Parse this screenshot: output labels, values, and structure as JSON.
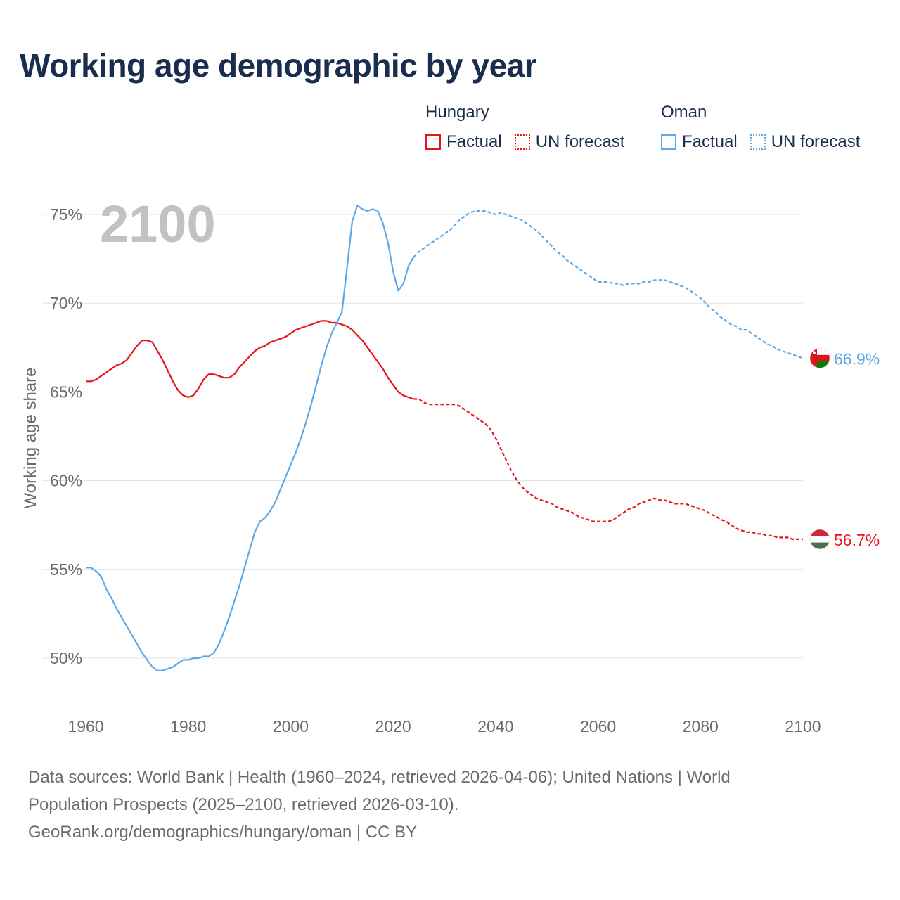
{
  "title": "Working age demographic by year",
  "year_label": "2100",
  "legend": {
    "groups": [
      {
        "name": "Hungary",
        "color": "#e8141c",
        "factual_label": "Factual",
        "forecast_label": "UN forecast"
      },
      {
        "name": "Oman",
        "color": "#5ea8e6",
        "factual_label": "Factual",
        "forecast_label": "UN forecast"
      }
    ]
  },
  "footer": {
    "line1": "Data sources: World Bank | Health (1960–2024, retrieved 2026-04-06); United Nations | World",
    "line2": "Population Prospects (2025–2100, retrieved 2026-03-10).",
    "line3": "GeoRank.org/demographics/hungary/oman | CC BY"
  },
  "chart_data": {
    "type": "line",
    "title": "Working age demographic by year",
    "xlabel": "",
    "ylabel": "Working age share",
    "xlim": [
      1960,
      2100
    ],
    "ylim": [
      48.5,
      77
    ],
    "x_ticks": [
      1960,
      1980,
      2000,
      2020,
      2040,
      2060,
      2080,
      2100
    ],
    "x_tick_labels": [
      "1960",
      "1980",
      "2000",
      "2020",
      "2040",
      "2060",
      "2080",
      "2100"
    ],
    "y_ticks": [
      50,
      55,
      60,
      65,
      70,
      75
    ],
    "y_tick_labels": [
      "50%",
      "55%",
      "60%",
      "65%",
      "70%",
      "75%"
    ],
    "grid": true,
    "forecast_start_year": 2024,
    "series": [
      {
        "name": "Hungary",
        "color": "#e8141c",
        "end_label": "56.7%",
        "points": [
          [
            1960,
            65.6
          ],
          [
            1961,
            65.6
          ],
          [
            1962,
            65.7
          ],
          [
            1963,
            65.9
          ],
          [
            1964,
            66.1
          ],
          [
            1965,
            66.3
          ],
          [
            1966,
            66.5
          ],
          [
            1967,
            66.6
          ],
          [
            1968,
            66.8
          ],
          [
            1969,
            67.2
          ],
          [
            1970,
            67.6
          ],
          [
            1971,
            67.9
          ],
          [
            1972,
            67.9
          ],
          [
            1973,
            67.8
          ],
          [
            1974,
            67.3
          ],
          [
            1975,
            66.8
          ],
          [
            1976,
            66.2
          ],
          [
            1977,
            65.6
          ],
          [
            1978,
            65.1
          ],
          [
            1979,
            64.8
          ],
          [
            1980,
            64.7
          ],
          [
            1981,
            64.8
          ],
          [
            1982,
            65.2
          ],
          [
            1983,
            65.7
          ],
          [
            1984,
            66.0
          ],
          [
            1985,
            66.0
          ],
          [
            1986,
            65.9
          ],
          [
            1987,
            65.8
          ],
          [
            1988,
            65.8
          ],
          [
            1989,
            66.0
          ],
          [
            1990,
            66.4
          ],
          [
            1991,
            66.7
          ],
          [
            1992,
            67.0
          ],
          [
            1993,
            67.3
          ],
          [
            1994,
            67.5
          ],
          [
            1995,
            67.6
          ],
          [
            1996,
            67.8
          ],
          [
            1997,
            67.9
          ],
          [
            1998,
            68.0
          ],
          [
            1999,
            68.1
          ],
          [
            2000,
            68.3
          ],
          [
            2001,
            68.5
          ],
          [
            2002,
            68.6
          ],
          [
            2003,
            68.7
          ],
          [
            2004,
            68.8
          ],
          [
            2005,
            68.9
          ],
          [
            2006,
            69.0
          ],
          [
            2007,
            69.0
          ],
          [
            2008,
            68.9
          ],
          [
            2009,
            68.9
          ],
          [
            2010,
            68.8
          ],
          [
            2011,
            68.7
          ],
          [
            2012,
            68.5
          ],
          [
            2013,
            68.2
          ],
          [
            2014,
            67.9
          ],
          [
            2015,
            67.5
          ],
          [
            2016,
            67.1
          ],
          [
            2017,
            66.7
          ],
          [
            2018,
            66.3
          ],
          [
            2019,
            65.8
          ],
          [
            2020,
            65.4
          ],
          [
            2021,
            65.0
          ],
          [
            2022,
            64.8
          ],
          [
            2023,
            64.7
          ],
          [
            2024,
            64.6
          ],
          [
            2025,
            64.6
          ],
          [
            2026,
            64.4
          ],
          [
            2027,
            64.3
          ],
          [
            2028,
            64.3
          ],
          [
            2029,
            64.3
          ],
          [
            2030,
            64.3
          ],
          [
            2031,
            64.3
          ],
          [
            2032,
            64.3
          ],
          [
            2033,
            64.2
          ],
          [
            2034,
            64.0
          ],
          [
            2035,
            63.8
          ],
          [
            2036,
            63.6
          ],
          [
            2037,
            63.4
          ],
          [
            2038,
            63.2
          ],
          [
            2039,
            62.9
          ],
          [
            2040,
            62.4
          ],
          [
            2041,
            61.8
          ],
          [
            2042,
            61.2
          ],
          [
            2043,
            60.6
          ],
          [
            2044,
            60.1
          ],
          [
            2045,
            59.7
          ],
          [
            2046,
            59.4
          ],
          [
            2047,
            59.2
          ],
          [
            2048,
            59.0
          ],
          [
            2049,
            58.9
          ],
          [
            2050,
            58.8
          ],
          [
            2051,
            58.7
          ],
          [
            2052,
            58.5
          ],
          [
            2053,
            58.4
          ],
          [
            2054,
            58.3
          ],
          [
            2055,
            58.2
          ],
          [
            2056,
            58.0
          ],
          [
            2057,
            57.9
          ],
          [
            2058,
            57.8
          ],
          [
            2059,
            57.7
          ],
          [
            2060,
            57.7
          ],
          [
            2061,
            57.7
          ],
          [
            2062,
            57.7
          ],
          [
            2063,
            57.8
          ],
          [
            2064,
            58.0
          ],
          [
            2065,
            58.2
          ],
          [
            2066,
            58.4
          ],
          [
            2067,
            58.5
          ],
          [
            2068,
            58.7
          ],
          [
            2069,
            58.8
          ],
          [
            2070,
            58.9
          ],
          [
            2071,
            59.0
          ],
          [
            2072,
            58.9
          ],
          [
            2073,
            58.9
          ],
          [
            2074,
            58.8
          ],
          [
            2075,
            58.7
          ],
          [
            2076,
            58.7
          ],
          [
            2077,
            58.7
          ],
          [
            2078,
            58.6
          ],
          [
            2079,
            58.5
          ],
          [
            2080,
            58.4
          ],
          [
            2081,
            58.3
          ],
          [
            2082,
            58.1
          ],
          [
            2083,
            58.0
          ],
          [
            2084,
            57.8
          ],
          [
            2085,
            57.7
          ],
          [
            2086,
            57.5
          ],
          [
            2087,
            57.3
          ],
          [
            2088,
            57.2
          ],
          [
            2089,
            57.1
          ],
          [
            2090,
            57.1
          ],
          [
            2091,
            57.0
          ],
          [
            2092,
            57.0
          ],
          [
            2093,
            56.9
          ],
          [
            2094,
            56.9
          ],
          [
            2095,
            56.8
          ],
          [
            2096,
            56.8
          ],
          [
            2097,
            56.8
          ],
          [
            2098,
            56.7
          ],
          [
            2099,
            56.7
          ],
          [
            2100,
            56.7
          ]
        ]
      },
      {
        "name": "Oman",
        "color": "#5ea8e6",
        "end_label": "66.9%",
        "points": [
          [
            1960,
            55.1
          ],
          [
            1961,
            55.1
          ],
          [
            1962,
            54.9
          ],
          [
            1963,
            54.6
          ],
          [
            1964,
            53.9
          ],
          [
            1965,
            53.4
          ],
          [
            1966,
            52.8
          ],
          [
            1967,
            52.3
          ],
          [
            1968,
            51.8
          ],
          [
            1969,
            51.3
          ],
          [
            1970,
            50.8
          ],
          [
            1971,
            50.3
          ],
          [
            1972,
            49.9
          ],
          [
            1973,
            49.5
          ],
          [
            1974,
            49.3
          ],
          [
            1975,
            49.3
          ],
          [
            1976,
            49.4
          ],
          [
            1977,
            49.5
          ],
          [
            1978,
            49.7
          ],
          [
            1979,
            49.9
          ],
          [
            1980,
            49.9
          ],
          [
            1981,
            50.0
          ],
          [
            1982,
            50.0
          ],
          [
            1983,
            50.1
          ],
          [
            1984,
            50.1
          ],
          [
            1985,
            50.3
          ],
          [
            1986,
            50.8
          ],
          [
            1987,
            51.5
          ],
          [
            1988,
            52.3
          ],
          [
            1989,
            53.2
          ],
          [
            1990,
            54.1
          ],
          [
            1991,
            55.1
          ],
          [
            1992,
            56.1
          ],
          [
            1993,
            57.1
          ],
          [
            1994,
            57.7
          ],
          [
            1995,
            57.9
          ],
          [
            1996,
            58.3
          ],
          [
            1997,
            58.8
          ],
          [
            1998,
            59.5
          ],
          [
            1999,
            60.2
          ],
          [
            2000,
            60.9
          ],
          [
            2001,
            61.6
          ],
          [
            2002,
            62.4
          ],
          [
            2003,
            63.3
          ],
          [
            2004,
            64.3
          ],
          [
            2005,
            65.4
          ],
          [
            2006,
            66.5
          ],
          [
            2007,
            67.5
          ],
          [
            2008,
            68.3
          ],
          [
            2009,
            68.9
          ],
          [
            2010,
            69.5
          ],
          [
            2011,
            72.0
          ],
          [
            2012,
            74.6
          ],
          [
            2013,
            75.5
          ],
          [
            2014,
            75.3
          ],
          [
            2015,
            75.2
          ],
          [
            2016,
            75.3
          ],
          [
            2017,
            75.2
          ],
          [
            2018,
            74.5
          ],
          [
            2019,
            73.4
          ],
          [
            2020,
            71.8
          ],
          [
            2021,
            70.7
          ],
          [
            2022,
            71.1
          ],
          [
            2023,
            72.1
          ],
          [
            2024,
            72.6
          ],
          [
            2025,
            72.9
          ],
          [
            2026,
            73.1
          ],
          [
            2027,
            73.3
          ],
          [
            2028,
            73.5
          ],
          [
            2029,
            73.7
          ],
          [
            2030,
            73.9
          ],
          [
            2031,
            74.1
          ],
          [
            2032,
            74.4
          ],
          [
            2033,
            74.7
          ],
          [
            2034,
            74.9
          ],
          [
            2035,
            75.1
          ],
          [
            2036,
            75.2
          ],
          [
            2037,
            75.2
          ],
          [
            2038,
            75.2
          ],
          [
            2039,
            75.1
          ],
          [
            2040,
            75.0
          ],
          [
            2041,
            75.1
          ],
          [
            2042,
            75.0
          ],
          [
            2043,
            74.9
          ],
          [
            2044,
            74.8
          ],
          [
            2045,
            74.7
          ],
          [
            2046,
            74.5
          ],
          [
            2047,
            74.3
          ],
          [
            2048,
            74.1
          ],
          [
            2049,
            73.8
          ],
          [
            2050,
            73.5
          ],
          [
            2051,
            73.2
          ],
          [
            2052,
            72.9
          ],
          [
            2053,
            72.7
          ],
          [
            2054,
            72.4
          ],
          [
            2055,
            72.2
          ],
          [
            2056,
            72.0
          ],
          [
            2057,
            71.8
          ],
          [
            2058,
            71.6
          ],
          [
            2059,
            71.4
          ],
          [
            2060,
            71.2
          ],
          [
            2061,
            71.2
          ],
          [
            2062,
            71.2
          ],
          [
            2063,
            71.1
          ],
          [
            2064,
            71.1
          ],
          [
            2065,
            71.0
          ],
          [
            2066,
            71.1
          ],
          [
            2067,
            71.1
          ],
          [
            2068,
            71.1
          ],
          [
            2069,
            71.2
          ],
          [
            2070,
            71.2
          ],
          [
            2071,
            71.3
          ],
          [
            2072,
            71.3
          ],
          [
            2073,
            71.3
          ],
          [
            2074,
            71.2
          ],
          [
            2075,
            71.1
          ],
          [
            2076,
            71.0
          ],
          [
            2077,
            70.9
          ],
          [
            2078,
            70.7
          ],
          [
            2079,
            70.5
          ],
          [
            2080,
            70.3
          ],
          [
            2081,
            70.0
          ],
          [
            2082,
            69.7
          ],
          [
            2083,
            69.5
          ],
          [
            2084,
            69.2
          ],
          [
            2085,
            69.0
          ],
          [
            2086,
            68.8
          ],
          [
            2087,
            68.7
          ],
          [
            2088,
            68.5
          ],
          [
            2089,
            68.5
          ],
          [
            2090,
            68.3
          ],
          [
            2091,
            68.1
          ],
          [
            2092,
            67.9
          ],
          [
            2093,
            67.7
          ],
          [
            2094,
            67.6
          ],
          [
            2095,
            67.4
          ],
          [
            2096,
            67.3
          ],
          [
            2097,
            67.2
          ],
          [
            2098,
            67.1
          ],
          [
            2099,
            67.0
          ],
          [
            2100,
            66.9
          ]
        ]
      }
    ]
  }
}
